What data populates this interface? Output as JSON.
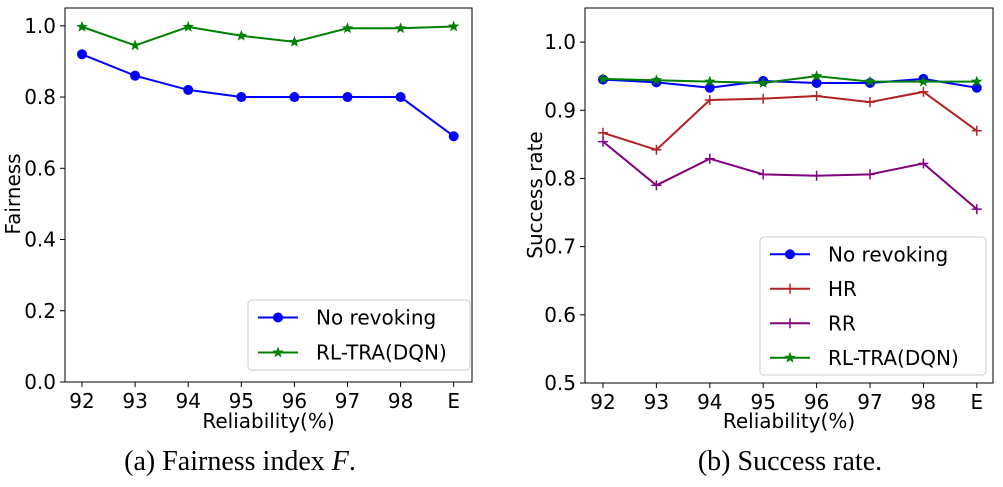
{
  "chart_data": [
    {
      "type": "line",
      "categories": [
        "92",
        "93",
        "94",
        "95",
        "96",
        "97",
        "98",
        "E"
      ],
      "xlabel": "Reliability(%)",
      "ylabel": "Fairness",
      "ylim": [
        0,
        1.05
      ],
      "yticks": [
        "0.0",
        "0.2",
        "0.4",
        "0.6",
        "0.8",
        "1.0"
      ],
      "grid": false,
      "legend_position": "bottom-right",
      "series": [
        {
          "name": "No revoking",
          "color": "#0000ff",
          "marker": "circle",
          "values": [
            0.92,
            0.86,
            0.82,
            0.8,
            0.8,
            0.8,
            0.8,
            0.69
          ]
        },
        {
          "name": "RL-TRA(DQN)",
          "color": "#008000",
          "marker": "star",
          "values": [
            0.997,
            0.945,
            0.997,
            0.972,
            0.955,
            0.993,
            0.993,
            0.998
          ]
        }
      ],
      "caption_prefix": "(a) Fairness index ",
      "caption_math": "F",
      "caption_suffix": "."
    },
    {
      "type": "line",
      "categories": [
        "92",
        "93",
        "94",
        "95",
        "96",
        "97",
        "98",
        "E"
      ],
      "xlabel": "Reliability(%)",
      "ylabel": "Success rate",
      "ylim": [
        0.5,
        1.05
      ],
      "yticks": [
        "0.5",
        "0.6",
        "0.7",
        "0.8",
        "0.9",
        "1.0"
      ],
      "grid": false,
      "legend_position": "bottom-right",
      "series": [
        {
          "name": "No revoking",
          "color": "#0000ff",
          "marker": "circle",
          "values": [
            0.945,
            0.941,
            0.933,
            0.943,
            0.94,
            0.94,
            0.946,
            0.933
          ]
        },
        {
          "name": "HR",
          "color": "#b22222",
          "marker": "plus",
          "values": [
            0.867,
            0.842,
            0.915,
            0.917,
            0.921,
            0.912,
            0.927,
            0.87
          ]
        },
        {
          "name": "RR",
          "color": "#800080",
          "marker": "plus",
          "values": [
            0.854,
            0.79,
            0.829,
            0.806,
            0.804,
            0.806,
            0.822,
            0.755
          ]
        },
        {
          "name": "RL-TRA(DQN)",
          "color": "#008000",
          "marker": "star",
          "values": [
            0.946,
            0.944,
            0.942,
            0.94,
            0.95,
            0.942,
            0.942,
            0.942
          ]
        }
      ],
      "caption": "(b) Success rate."
    }
  ]
}
